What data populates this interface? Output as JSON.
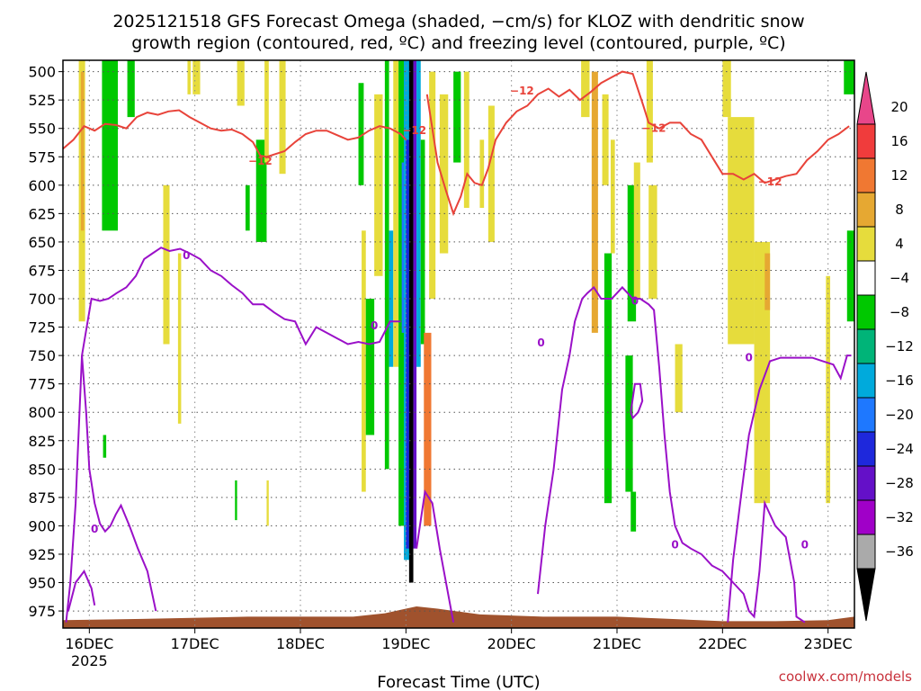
{
  "title_line1": "2025121518 GFS Forecast Omega (shaded, −cm/s) for KLOZ with dendritic snow",
  "title_line2": "growth region (contoured, red, ºC) and freezing level (contoured, purple, ºC)",
  "credit": "coolwx.com/models",
  "chart_data": {
    "type": "heatmap",
    "title": "2025121518 GFS Forecast Omega (shaded, −cm/s) for KLOZ with dendritic snow growth region (contoured, red, ºC) and freezing level (contoured, purple, ºC)",
    "xlabel": "Forecast Time (UTC)",
    "ylabel": "",
    "x_ticks": [
      "16DEC",
      "17DEC",
      "18DEC",
      "19DEC",
      "20DEC",
      "21DEC",
      "22DEC",
      "23DEC"
    ],
    "x_tick_year": "2025",
    "x_range_days": [
      15.75,
      23.25
    ],
    "y_ticks": [
      500,
      525,
      550,
      575,
      600,
      625,
      650,
      675,
      700,
      725,
      750,
      775,
      800,
      825,
      850,
      875,
      900,
      925,
      950,
      975
    ],
    "y_range": [
      490,
      990
    ],
    "y_inverted": true,
    "grid": true,
    "colorbar": {
      "labels": [
        "20",
        "16",
        "12",
        "8",
        "4",
        "−4",
        "−8",
        "−12",
        "−16",
        "−20",
        "−24",
        "−28",
        "−32",
        "−36"
      ],
      "bins": [
        {
          "color": "#e8468a"
        },
        {
          "color": "#f03c3c"
        },
        {
          "color": "#f07832"
        },
        {
          "color": "#e6a832"
        },
        {
          "color": "#e6dc3c"
        },
        {
          "color": "#ffffff"
        },
        {
          "color": "#00c800"
        },
        {
          "color": "#00b478"
        },
        {
          "color": "#00aadc"
        },
        {
          "color": "#1e78ff"
        },
        {
          "color": "#1e28dc"
        },
        {
          "color": "#6410c8"
        },
        {
          "color": "#a000c8"
        },
        {
          "color": "#aaaaaa"
        },
        {
          "color": "#000000"
        }
      ]
    },
    "contour_labels": {
      "dendritic": "−12",
      "freezing": "0"
    },
    "colors": {
      "dendritic_contour": "#e8433a",
      "freezing_contour": "#9a10c8",
      "terrain": "#a0522d"
    },
    "shading": [
      {
        "x0": 15.9,
        "x1": 15.96,
        "p0": 490,
        "p1": 720,
        "c": "#e6dc3c"
      },
      {
        "x0": 15.92,
        "x1": 15.95,
        "p0": 500,
        "p1": 640,
        "c": "#e6a832"
      },
      {
        "x0": 16.12,
        "x1": 16.27,
        "p0": 490,
        "p1": 640,
        "c": "#00c800"
      },
      {
        "x0": 16.13,
        "x1": 16.16,
        "p0": 820,
        "p1": 840,
        "c": "#00c800"
      },
      {
        "x0": 16.36,
        "x1": 16.43,
        "p0": 490,
        "p1": 540,
        "c": "#00c800"
      },
      {
        "x0": 16.7,
        "x1": 16.76,
        "p0": 600,
        "p1": 740,
        "c": "#e6dc3c"
      },
      {
        "x0": 16.84,
        "x1": 16.87,
        "p0": 660,
        "p1": 810,
        "c": "#e6dc3c"
      },
      {
        "x0": 16.93,
        "x1": 16.96,
        "p0": 490,
        "p1": 520,
        "c": "#e6dc3c"
      },
      {
        "x0": 16.98,
        "x1": 17.05,
        "p0": 490,
        "p1": 520,
        "c": "#e6dc3c"
      },
      {
        "x0": 17.4,
        "x1": 17.47,
        "p0": 490,
        "p1": 530,
        "c": "#e6dc3c"
      },
      {
        "x0": 17.58,
        "x1": 17.68,
        "p0": 560,
        "p1": 650,
        "c": "#00c800"
      },
      {
        "x0": 17.48,
        "x1": 17.52,
        "p0": 600,
        "p1": 640,
        "c": "#00c800"
      },
      {
        "x0": 17.66,
        "x1": 17.7,
        "p0": 490,
        "p1": 580,
        "c": "#e6dc3c"
      },
      {
        "x0": 17.8,
        "x1": 17.86,
        "p0": 490,
        "p1": 590,
        "c": "#e6dc3c"
      },
      {
        "x0": 17.68,
        "x1": 17.7,
        "p0": 860,
        "p1": 900,
        "c": "#e6dc3c"
      },
      {
        "x0": 17.38,
        "x1": 17.4,
        "p0": 860,
        "p1": 895,
        "c": "#00c800"
      },
      {
        "x0": 18.55,
        "x1": 18.6,
        "p0": 510,
        "p1": 600,
        "c": "#00c800"
      },
      {
        "x0": 18.58,
        "x1": 18.62,
        "p0": 640,
        "p1": 870,
        "c": "#e6dc3c"
      },
      {
        "x0": 18.62,
        "x1": 18.7,
        "p0": 700,
        "p1": 820,
        "c": "#00c800"
      },
      {
        "x0": 18.7,
        "x1": 18.78,
        "p0": 520,
        "p1": 680,
        "c": "#e6dc3c"
      },
      {
        "x0": 18.8,
        "x1": 18.84,
        "p0": 490,
        "p1": 850,
        "c": "#00c800"
      },
      {
        "x0": 18.84,
        "x1": 18.88,
        "p0": 640,
        "p1": 760,
        "c": "#00aadc"
      },
      {
        "x0": 18.88,
        "x1": 18.93,
        "p0": 490,
        "p1": 760,
        "c": "#e6dc3c"
      },
      {
        "x0": 18.93,
        "x1": 18.98,
        "p0": 490,
        "p1": 900,
        "c": "#00c800"
      },
      {
        "x0": 18.96,
        "x1": 18.99,
        "p0": 580,
        "p1": 730,
        "c": "#1e78ff"
      },
      {
        "x0": 18.98,
        "x1": 19.04,
        "p0": 490,
        "p1": 930,
        "c": "#00aadc"
      },
      {
        "x0": 19.0,
        "x1": 19.03,
        "p0": 560,
        "p1": 920,
        "c": "#1e28dc"
      },
      {
        "x0": 19.03,
        "x1": 19.07,
        "p0": 490,
        "p1": 950,
        "c": "#000000"
      },
      {
        "x0": 19.07,
        "x1": 19.1,
        "p0": 490,
        "p1": 920,
        "c": "#6410c8"
      },
      {
        "x0": 19.1,
        "x1": 19.14,
        "p0": 490,
        "p1": 760,
        "c": "#00aadc"
      },
      {
        "x0": 19.14,
        "x1": 19.18,
        "p0": 560,
        "p1": 740,
        "c": "#00c800"
      },
      {
        "x0": 19.17,
        "x1": 19.24,
        "p0": 730,
        "p1": 900,
        "c": "#f07832"
      },
      {
        "x0": 19.22,
        "x1": 19.28,
        "p0": 500,
        "p1": 700,
        "c": "#e6dc3c"
      },
      {
        "x0": 19.32,
        "x1": 19.4,
        "p0": 520,
        "p1": 660,
        "c": "#e6dc3c"
      },
      {
        "x0": 19.45,
        "x1": 19.52,
        "p0": 500,
        "p1": 580,
        "c": "#00c800"
      },
      {
        "x0": 19.55,
        "x1": 19.6,
        "p0": 500,
        "p1": 620,
        "c": "#e6dc3c"
      },
      {
        "x0": 19.7,
        "x1": 19.74,
        "p0": 560,
        "p1": 620,
        "c": "#e6dc3c"
      },
      {
        "x0": 19.78,
        "x1": 19.84,
        "p0": 530,
        "p1": 650,
        "c": "#e6dc3c"
      },
      {
        "x0": 20.66,
        "x1": 20.74,
        "p0": 490,
        "p1": 540,
        "c": "#e6dc3c"
      },
      {
        "x0": 20.76,
        "x1": 20.82,
        "p0": 500,
        "p1": 730,
        "c": "#e6a832"
      },
      {
        "x0": 20.86,
        "x1": 20.92,
        "p0": 520,
        "p1": 600,
        "c": "#e6dc3c"
      },
      {
        "x0": 20.94,
        "x1": 20.98,
        "p0": 560,
        "p1": 660,
        "c": "#e6dc3c"
      },
      {
        "x0": 21.1,
        "x1": 21.18,
        "p0": 600,
        "p1": 720,
        "c": "#00c800"
      },
      {
        "x0": 21.16,
        "x1": 21.22,
        "p0": 580,
        "p1": 700,
        "c": "#e6dc3c"
      },
      {
        "x0": 21.28,
        "x1": 21.34,
        "p0": 490,
        "p1": 580,
        "c": "#e6dc3c"
      },
      {
        "x0": 21.3,
        "x1": 21.38,
        "p0": 600,
        "p1": 700,
        "c": "#e6dc3c"
      },
      {
        "x0": 20.88,
        "x1": 20.95,
        "p0": 660,
        "p1": 880,
        "c": "#00c800"
      },
      {
        "x0": 21.08,
        "x1": 21.15,
        "p0": 750,
        "p1": 870,
        "c": "#00c800"
      },
      {
        "x0": 21.13,
        "x1": 21.18,
        "p0": 870,
        "p1": 905,
        "c": "#00c800"
      },
      {
        "x0": 21.55,
        "x1": 21.62,
        "p0": 740,
        "p1": 800,
        "c": "#e6dc3c"
      },
      {
        "x0": 22.0,
        "x1": 22.08,
        "p0": 490,
        "p1": 540,
        "c": "#e6dc3c"
      },
      {
        "x0": 22.05,
        "x1": 22.3,
        "p0": 540,
        "p1": 740,
        "c": "#e6dc3c"
      },
      {
        "x0": 22.35,
        "x1": 22.42,
        "p0": 680,
        "p1": 720,
        "c": "#e6a832"
      },
      {
        "x0": 22.3,
        "x1": 22.45,
        "p0": 650,
        "p1": 880,
        "c": "#e6dc3c"
      },
      {
        "x0": 22.4,
        "x1": 22.45,
        "p0": 660,
        "p1": 710,
        "c": "#e6a832"
      },
      {
        "x0": 22.98,
        "x1": 23.02,
        "p0": 680,
        "p1": 880,
        "c": "#e6dc3c"
      },
      {
        "x0": 23.15,
        "x1": 23.25,
        "p0": 490,
        "p1": 520,
        "c": "#00c800"
      },
      {
        "x0": 23.18,
        "x1": 23.25,
        "p0": 640,
        "p1": 720,
        "c": "#00c800"
      }
    ],
    "dendritic_contours": [
      {
        "x": [
          15.75,
          15.85,
          15.95,
          16.05,
          16.15,
          16.25,
          16.35,
          16.45,
          16.55,
          16.65,
          16.75,
          16.85,
          16.95,
          17.05,
          17.15,
          17.25,
          17.35,
          17.45,
          17.55,
          17.62,
          17.68,
          17.75,
          17.85,
          17.95,
          18.05,
          18.15,
          18.25,
          18.35,
          18.45,
          18.55,
          18.65,
          18.75,
          18.85,
          18.95,
          19.0
        ],
        "y": [
          568,
          560,
          548,
          552,
          546,
          547,
          550,
          540,
          536,
          538,
          535,
          534,
          540,
          545,
          550,
          552,
          551,
          555,
          562,
          574,
          575,
          573,
          570,
          562,
          555,
          552,
          552,
          556,
          560,
          558,
          552,
          548,
          550,
          555,
          560
        ]
      },
      {
        "x": [
          19.2,
          19.3,
          19.38,
          19.45,
          19.52,
          19.58,
          19.65,
          19.72,
          19.78,
          19.85,
          19.95,
          20.05,
          20.15,
          20.25,
          20.35,
          20.45,
          20.55,
          20.65,
          20.75,
          20.85,
          20.95,
          21.05,
          21.15,
          21.25,
          21.3,
          21.4,
          21.5,
          21.6,
          21.7,
          21.8,
          21.9,
          22.0,
          22.1,
          22.2,
          22.3,
          22.4,
          22.5,
          22.6,
          22.7,
          22.8,
          22.9,
          23.0,
          23.1,
          23.2
        ],
        "y": [
          520,
          580,
          605,
          625,
          610,
          590,
          598,
          600,
          585,
          560,
          545,
          535,
          530,
          520,
          515,
          522,
          516,
          525,
          518,
          510,
          505,
          500,
          502,
          530,
          545,
          550,
          545,
          545,
          555,
          560,
          575,
          590,
          590,
          595,
          590,
          598,
          595,
          592,
          590,
          578,
          570,
          560,
          555,
          548
        ]
      }
    ],
    "freezing_contours": [
      {
        "x": [
          15.78,
          15.82,
          15.87,
          15.93,
          16.02,
          16.1,
          16.18,
          16.26,
          16.35,
          16.44,
          16.52,
          16.6,
          16.68,
          16.76,
          16.86,
          16.95,
          17.05,
          17.15,
          17.25,
          17.35,
          17.45,
          17.55,
          17.65,
          17.75,
          17.85,
          17.95,
          18.05,
          18.15,
          18.25,
          18.35,
          18.45,
          18.55,
          18.65,
          18.75,
          18.85,
          18.95
        ],
        "y": [
          985,
          950,
          880,
          750,
          700,
          702,
          700,
          695,
          690,
          680,
          665,
          660,
          655,
          658,
          656,
          660,
          665,
          675,
          680,
          688,
          695,
          705,
          705,
          712,
          718,
          720,
          740,
          725,
          730,
          735,
          740,
          738,
          740,
          738,
          720,
          720
        ]
      },
      {
        "x": [
          15.93,
          15.97,
          16.0,
          16.05,
          16.1,
          16.15,
          16.2,
          16.25,
          16.3,
          16.38,
          16.46,
          16.55,
          16.63
        ],
        "y": [
          750,
          800,
          850,
          880,
          898,
          905,
          900,
          890,
          882,
          900,
          920,
          940,
          975
        ]
      },
      {
        "x": [
          15.8,
          15.87,
          15.95,
          16.02,
          16.05
        ],
        "y": [
          975,
          950,
          940,
          955,
          970
        ]
      },
      {
        "x": [
          19.1,
          19.18,
          19.25,
          19.32,
          19.38,
          19.42,
          19.45
        ],
        "y": [
          920,
          870,
          880,
          920,
          950,
          970,
          985
        ]
      },
      {
        "x": [
          20.25,
          20.32,
          20.4,
          20.48,
          20.55,
          20.6,
          20.67,
          20.72,
          20.78,
          20.85,
          20.95,
          21.05,
          21.15,
          21.22,
          21.3,
          21.35,
          21.4,
          21.45,
          21.5,
          21.55,
          21.62,
          21.7,
          21.8,
          21.9,
          22.0,
          22.1,
          22.2,
          22.25,
          22.3,
          22.35,
          22.4,
          22.5,
          22.6,
          22.68,
          22.7,
          22.78
        ],
        "y": [
          960,
          900,
          850,
          780,
          750,
          720,
          700,
          695,
          690,
          700,
          700,
          690,
          700,
          700,
          705,
          710,
          760,
          820,
          870,
          900,
          915,
          920,
          925,
          935,
          940,
          950,
          960,
          975,
          980,
          940,
          880,
          900,
          910,
          950,
          980,
          985
        ]
      },
      {
        "x": [
          22.05,
          22.1,
          22.18,
          22.25,
          22.35,
          22.45,
          22.55,
          22.65,
          22.75,
          22.85,
          22.95,
          23.05,
          23.12,
          23.18,
          23.22
        ],
        "y": [
          985,
          930,
          870,
          820,
          780,
          755,
          752,
          752,
          752,
          752,
          755,
          758,
          770,
          750,
          750
        ]
      },
      {
        "x": [
          21.13,
          21.17,
          21.22,
          21.24,
          21.2,
          21.15,
          21.13
        ],
        "y": [
          800,
          775,
          775,
          790,
          800,
          805,
          800
        ]
      }
    ]
  }
}
